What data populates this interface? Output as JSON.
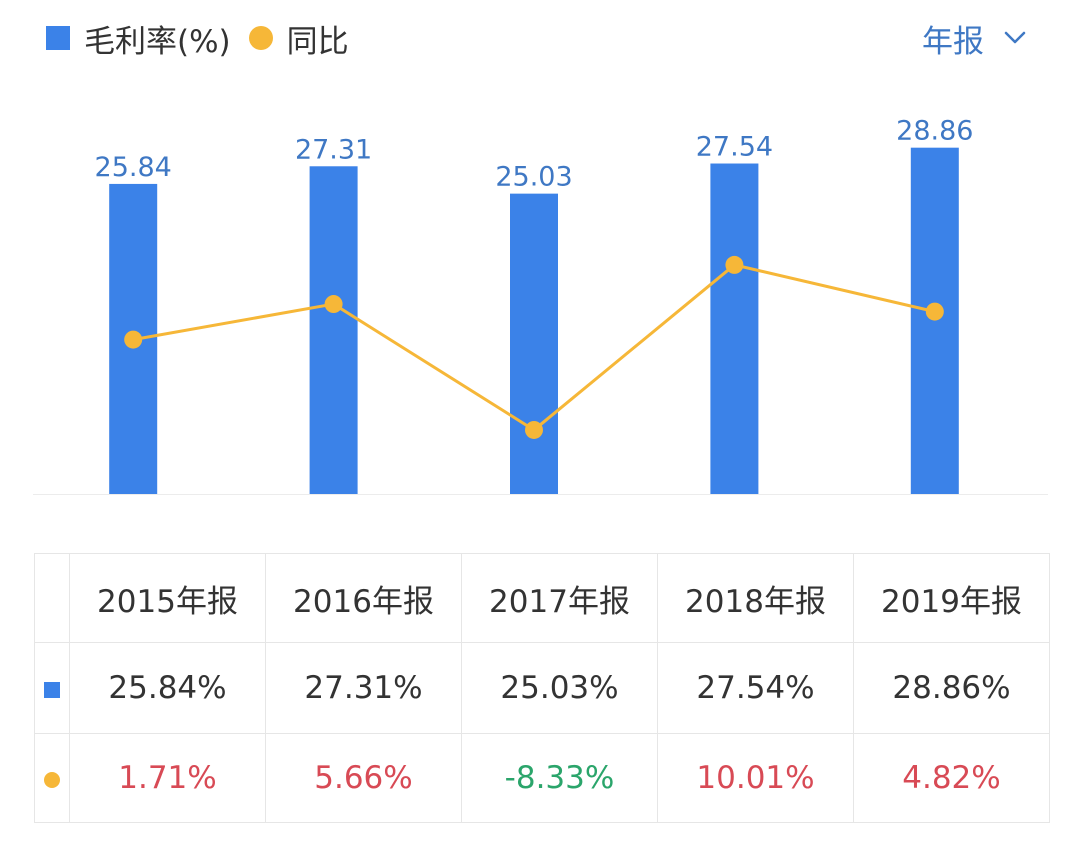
{
  "legend": {
    "bar_series": "毛利率(%)",
    "line_series": "同比"
  },
  "period_selector": {
    "label": "年报"
  },
  "colors": {
    "bar": "#3b82e8",
    "line": "#f6b738",
    "bar_label": "#3f78c4",
    "positive": "#d84a55",
    "negative": "#2ba56b"
  },
  "chart_data": {
    "type": "bar",
    "categories": [
      "2015年报",
      "2016年报",
      "2017年报",
      "2018年报",
      "2019年报"
    ],
    "series": [
      {
        "name": "毛利率(%)",
        "type": "bar",
        "values": [
          25.84,
          27.31,
          25.03,
          27.54,
          28.86
        ]
      },
      {
        "name": "同比",
        "type": "line",
        "values": [
          1.71,
          5.66,
          -8.33,
          10.01,
          4.82
        ]
      }
    ],
    "bar_labels": [
      "25.84",
      "27.31",
      "25.03",
      "27.54",
      "28.86"
    ],
    "bar_axis_range": [
      0,
      30
    ],
    "line_axis_range": [
      -15,
      25
    ],
    "grid": false
  },
  "table": {
    "headers": [
      "2015年报",
      "2016年报",
      "2017年报",
      "2018年报",
      "2019年报"
    ],
    "margin_row": [
      "25.84%",
      "27.31%",
      "25.03%",
      "27.54%",
      "28.86%"
    ],
    "yoy_row": [
      "1.71%",
      "5.66%",
      "-8.33%",
      "10.01%",
      "4.82%"
    ]
  }
}
